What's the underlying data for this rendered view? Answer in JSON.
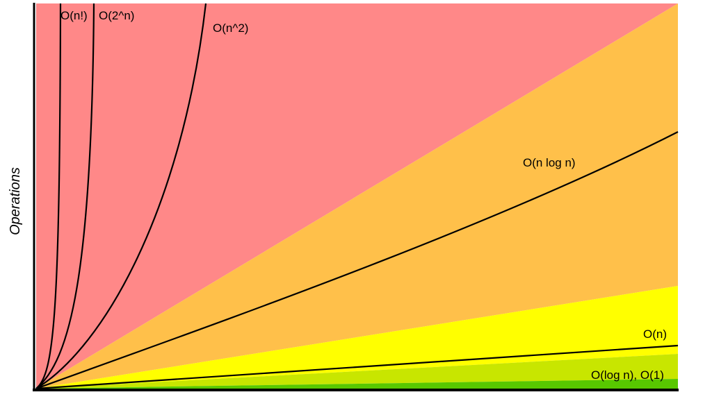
{
  "axis_label": "Operations",
  "curves": [
    {
      "label": "O(n!)"
    },
    {
      "label": "O(2^n)"
    },
    {
      "label": "O(n^2)"
    },
    {
      "label": "O(n log n)"
    },
    {
      "label": "O(n)"
    },
    {
      "label": "O(log n), O(1)"
    }
  ]
}
